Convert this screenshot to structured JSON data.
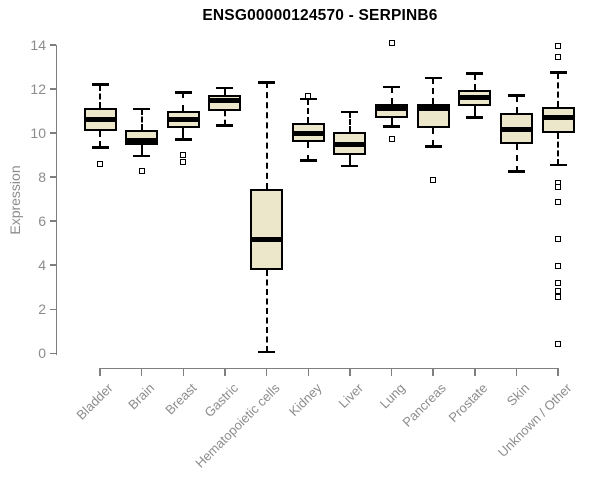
{
  "title": "ENSG00000124570 - SERPINB6",
  "colors": {
    "background": "#ffffff",
    "box_fill": "#ECE7CB",
    "box_stroke": "#000000",
    "axis": "#7f7f7f",
    "tick_label": "#8c8c8c",
    "title": "#000000"
  },
  "chart_data": {
    "type": "boxplot",
    "title": "ENSG00000124570 - SERPINB6",
    "xlabel": "",
    "ylabel": "Expression",
    "ylim": [
      0,
      14
    ],
    "yticks": [
      0,
      2,
      4,
      6,
      8,
      10,
      12,
      14
    ],
    "grid": false,
    "legend": false,
    "categories": [
      "Bladder",
      "Brain",
      "Breast",
      "Gastric",
      "Hematopoietic cells",
      "Kidney",
      "Liver",
      "Lung",
      "Pancreas",
      "Prostate",
      "Skin",
      "Unknown / Other"
    ],
    "boxes": [
      {
        "category": "Bladder",
        "low": 9.35,
        "q1": 10.1,
        "median": 10.6,
        "q3": 11.15,
        "high": 12.2,
        "outliers": [
          8.6
        ]
      },
      {
        "category": "Brain",
        "low": 8.95,
        "q1": 9.45,
        "median": 9.65,
        "q3": 10.15,
        "high": 11.1,
        "outliers": [
          8.3
        ]
      },
      {
        "category": "Breast",
        "low": 9.7,
        "q1": 10.25,
        "median": 10.6,
        "q3": 11.0,
        "high": 11.85,
        "outliers": [
          9.0,
          8.7
        ]
      },
      {
        "category": "Gastric",
        "low": 10.35,
        "q1": 11.0,
        "median": 11.5,
        "q3": 11.75,
        "high": 12.05,
        "outliers": []
      },
      {
        "category": "Hematopoietic cells",
        "low": 0.05,
        "q1": 3.8,
        "median": 5.15,
        "q3": 7.45,
        "high": 12.3,
        "outliers": []
      },
      {
        "category": "Kidney",
        "low": 8.75,
        "q1": 9.6,
        "median": 10.0,
        "q3": 10.45,
        "high": 11.55,
        "outliers": [
          11.7
        ]
      },
      {
        "category": "Liver",
        "low": 8.5,
        "q1": 9.0,
        "median": 9.5,
        "q3": 10.05,
        "high": 10.95,
        "outliers": []
      },
      {
        "category": "Lung",
        "low": 10.3,
        "q1": 10.7,
        "median": 11.1,
        "q3": 11.3,
        "high": 12.1,
        "outliers": [
          14.1,
          9.75
        ]
      },
      {
        "category": "Pancreas",
        "low": 9.4,
        "q1": 10.25,
        "median": 11.1,
        "q3": 11.3,
        "high": 12.5,
        "outliers": [
          7.85
        ]
      },
      {
        "category": "Prostate",
        "low": 10.7,
        "q1": 11.25,
        "median": 11.6,
        "q3": 11.95,
        "high": 12.7,
        "outliers": []
      },
      {
        "category": "Skin",
        "low": 8.25,
        "q1": 9.5,
        "median": 10.15,
        "q3": 10.9,
        "high": 11.7,
        "outliers": []
      },
      {
        "category": "Unknown / Other",
        "low": 8.55,
        "q1": 10.0,
        "median": 10.7,
        "q3": 11.2,
        "high": 12.75,
        "outliers": [
          13.95,
          13.45,
          7.75,
          7.55,
          6.85,
          5.2,
          3.95,
          3.2,
          2.85,
          2.55,
          0.4
        ]
      }
    ]
  }
}
